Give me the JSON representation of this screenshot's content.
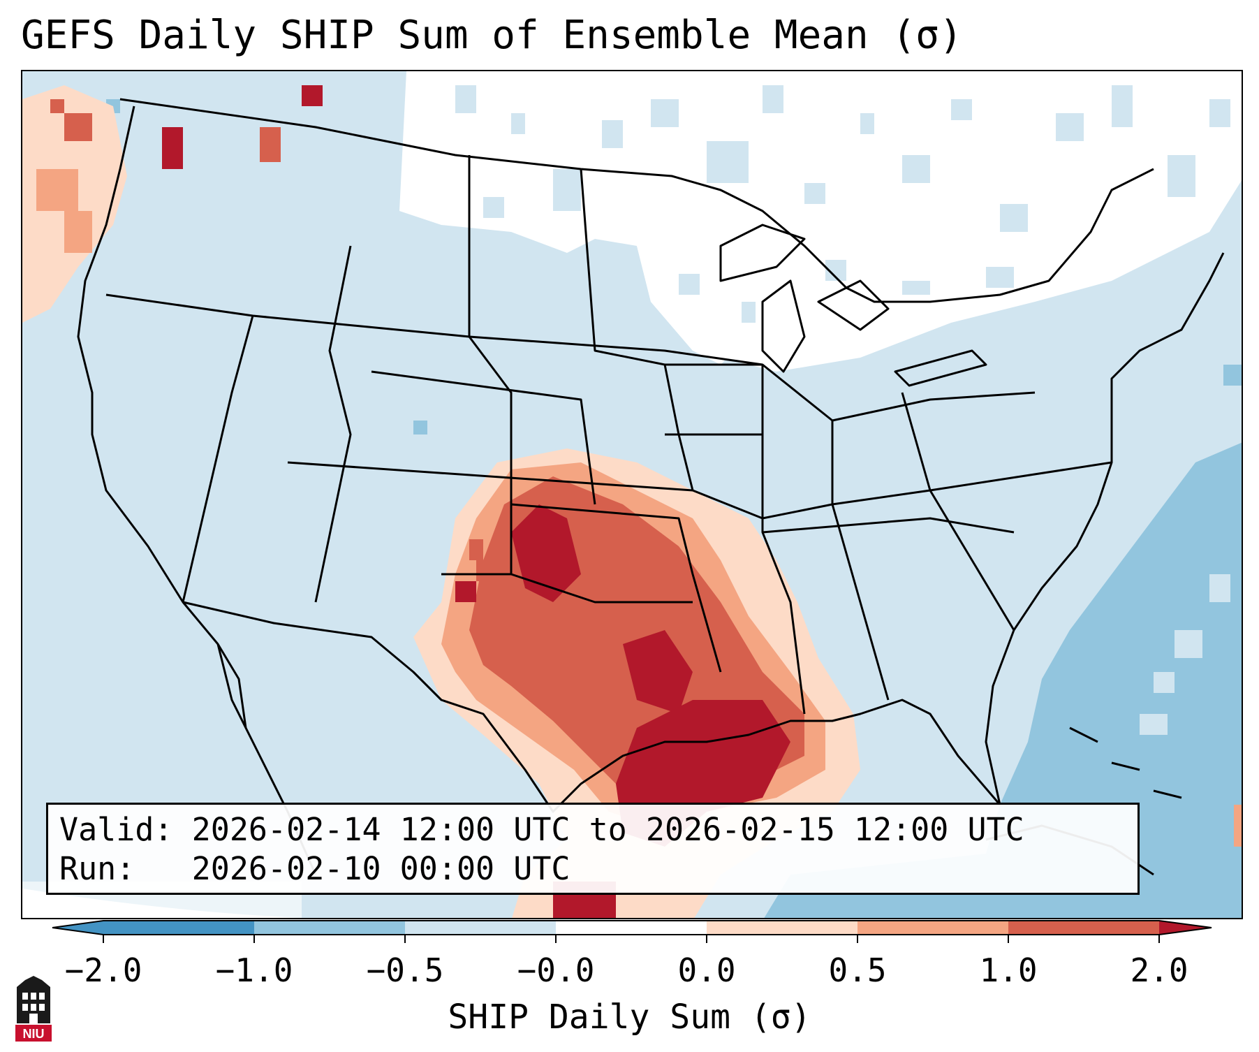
{
  "title": "GEFS Daily SHIP Sum of Ensemble Mean (σ)",
  "info": {
    "valid_label": "Valid:",
    "valid_value": "2026-02-14 12:00 UTC to 2026-02-15 12:00 UTC",
    "run_label": "Run:",
    "run_value": "2026-02-10 00:00 UTC"
  },
  "colorbar": {
    "label": "SHIP Daily Sum (σ)",
    "ticks": [
      "−2.0",
      "−1.0",
      "−0.5",
      "−0.0",
      "0.0",
      "0.5",
      "1.0",
      "2.0"
    ],
    "colors": [
      "#4393c3",
      "#92c5de",
      "#d1e5f0",
      "#ffffff",
      "#fddbc7",
      "#f4a582",
      "#d6604d",
      "#b2182b"
    ]
  },
  "logo": {
    "text": "NIU"
  },
  "map": {
    "ocean_color": "#d1e5f0",
    "deep_negative_color": "#92c5de",
    "land_neutral_color": "#ffffff",
    "high_color": "#b2182b",
    "mid_color": "#d6604d",
    "low_color": "#f4a582",
    "faint_color": "#fddbc7"
  }
}
